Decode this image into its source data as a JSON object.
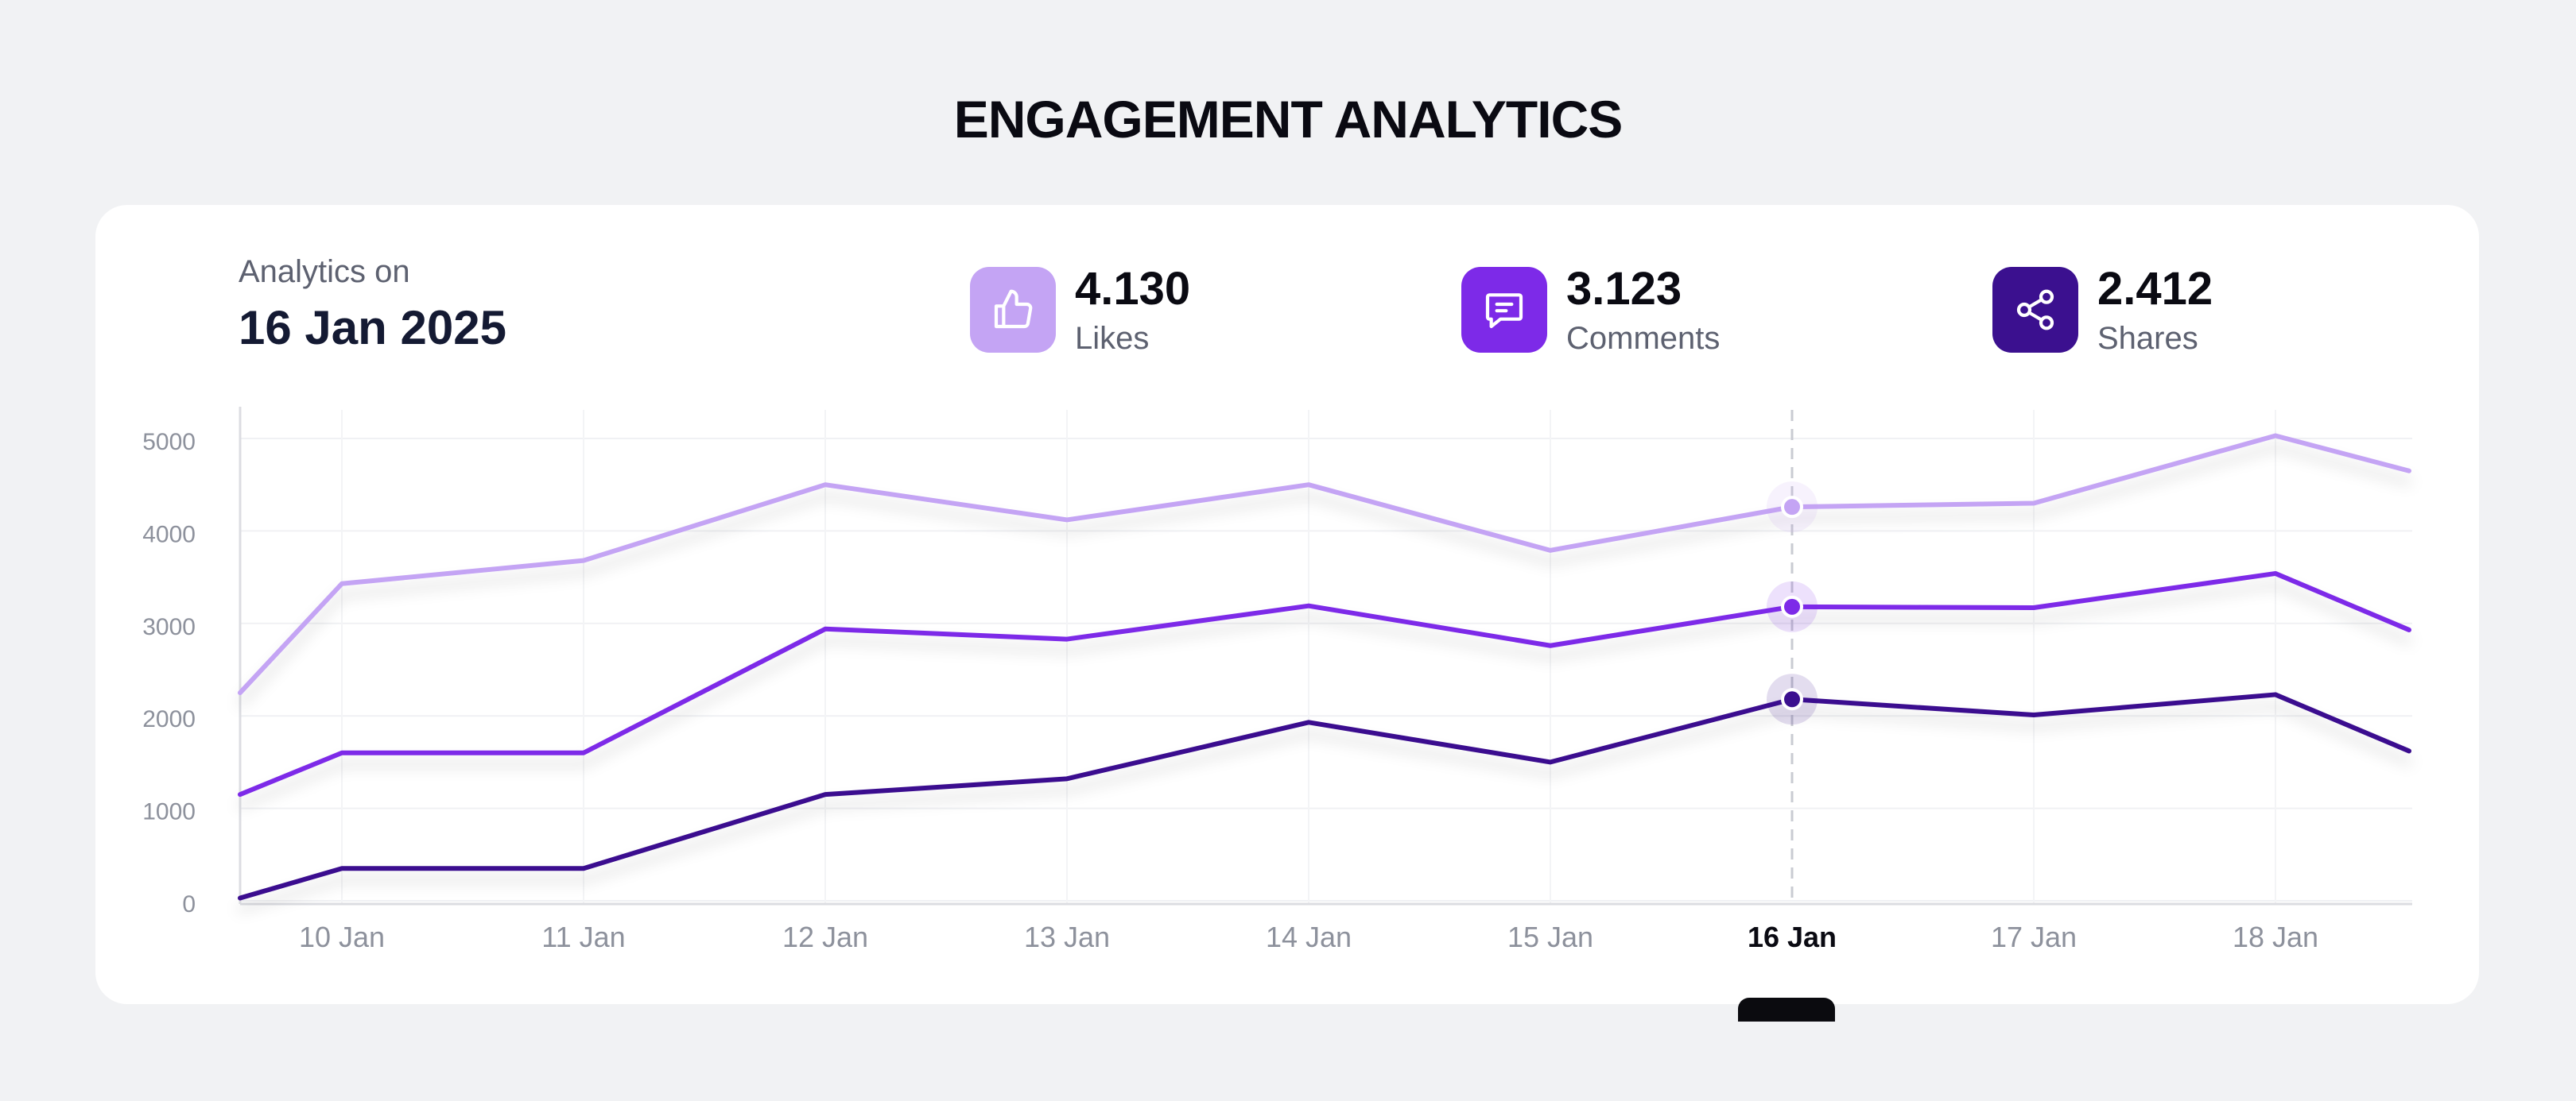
{
  "title": "ENGAGEMENT ANALYTICS",
  "header": {
    "analytics_label": "Analytics on",
    "date": "16 Jan 2025"
  },
  "metrics": [
    {
      "icon": "thumbs-up-icon",
      "value": "4.130",
      "label": "Likes",
      "color": "#c4a4f4"
    },
    {
      "icon": "comment-icon",
      "value": "3.123",
      "label": "Comments",
      "color": "#7d2ae8"
    },
    {
      "icon": "share-icon",
      "value": "2.412",
      "label": "Shares",
      "color": "#3b108f"
    }
  ],
  "chart_data": {
    "type": "line",
    "categories": [
      "",
      "10 Jan",
      "11 Jan",
      "",
      "12 Jan",
      "13 Jan",
      "14 Jan",
      "15 Jan",
      "16 Jan",
      "17 Jan",
      "18 Jan",
      ""
    ],
    "x_ticks": [
      "10 Jan",
      "11 Jan",
      "12 Jan",
      "13 Jan",
      "14 Jan",
      "15 Jan",
      "16 Jan",
      "17 Jan",
      "18 Jan"
    ],
    "highlight": "16 Jan",
    "y_ticks": [
      "0",
      "1000",
      "2000",
      "3000",
      "4000",
      "5000"
    ],
    "ylim": [
      0,
      5000
    ],
    "grid": true,
    "series": [
      {
        "name": "Likes",
        "color": "#c4a4f4",
        "values": [
          2250,
          3430,
          3680,
          null,
          4500,
          4120,
          4500,
          3790,
          4260,
          4300,
          5030,
          4650
        ]
      },
      {
        "name": "Comments",
        "color": "#7d2ae8",
        "values": [
          1150,
          1600,
          1600,
          null,
          2940,
          2830,
          3190,
          2760,
          3180,
          3170,
          3540,
          2930
        ]
      },
      {
        "name": "Shares",
        "color": "#3b108f",
        "values": [
          30,
          350,
          350,
          null,
          1150,
          1320,
          1930,
          1500,
          2180,
          2010,
          2230,
          1620
        ]
      }
    ]
  }
}
